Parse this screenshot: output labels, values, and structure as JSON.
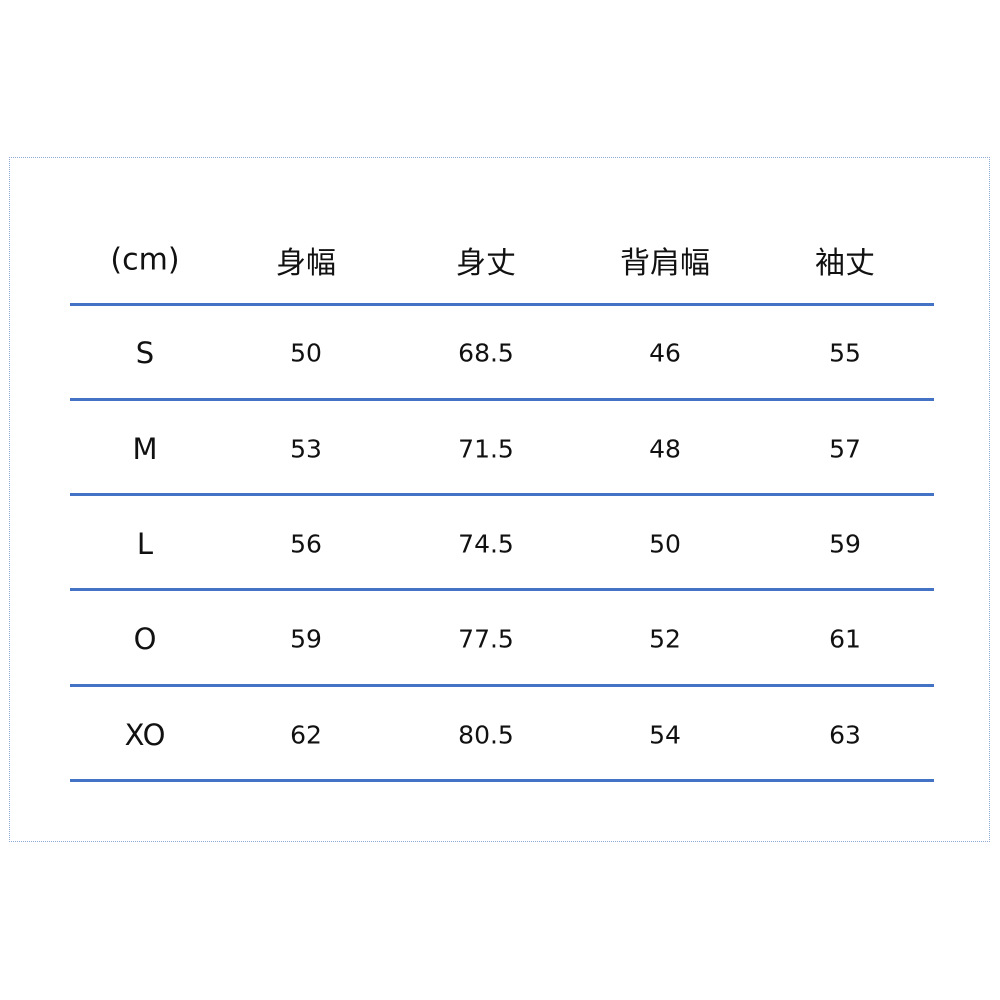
{
  "headers": [
    "(cm)",
    "身幅",
    "身丈",
    "背肩幅",
    "袖丈"
  ],
  "rows": [
    [
      "S",
      "50",
      "68.5",
      "46",
      "55"
    ],
    [
      "M",
      "53",
      "71.5",
      "48",
      "57"
    ],
    [
      "L",
      "56",
      "74.5",
      "50",
      "59"
    ],
    [
      "O",
      "59",
      "77.5",
      "52",
      "61"
    ],
    [
      "XO",
      "62",
      "80.5",
      "54",
      "63"
    ]
  ],
  "colors": {
    "rule": "#4472C4",
    "frame": "#8fa8d8"
  }
}
